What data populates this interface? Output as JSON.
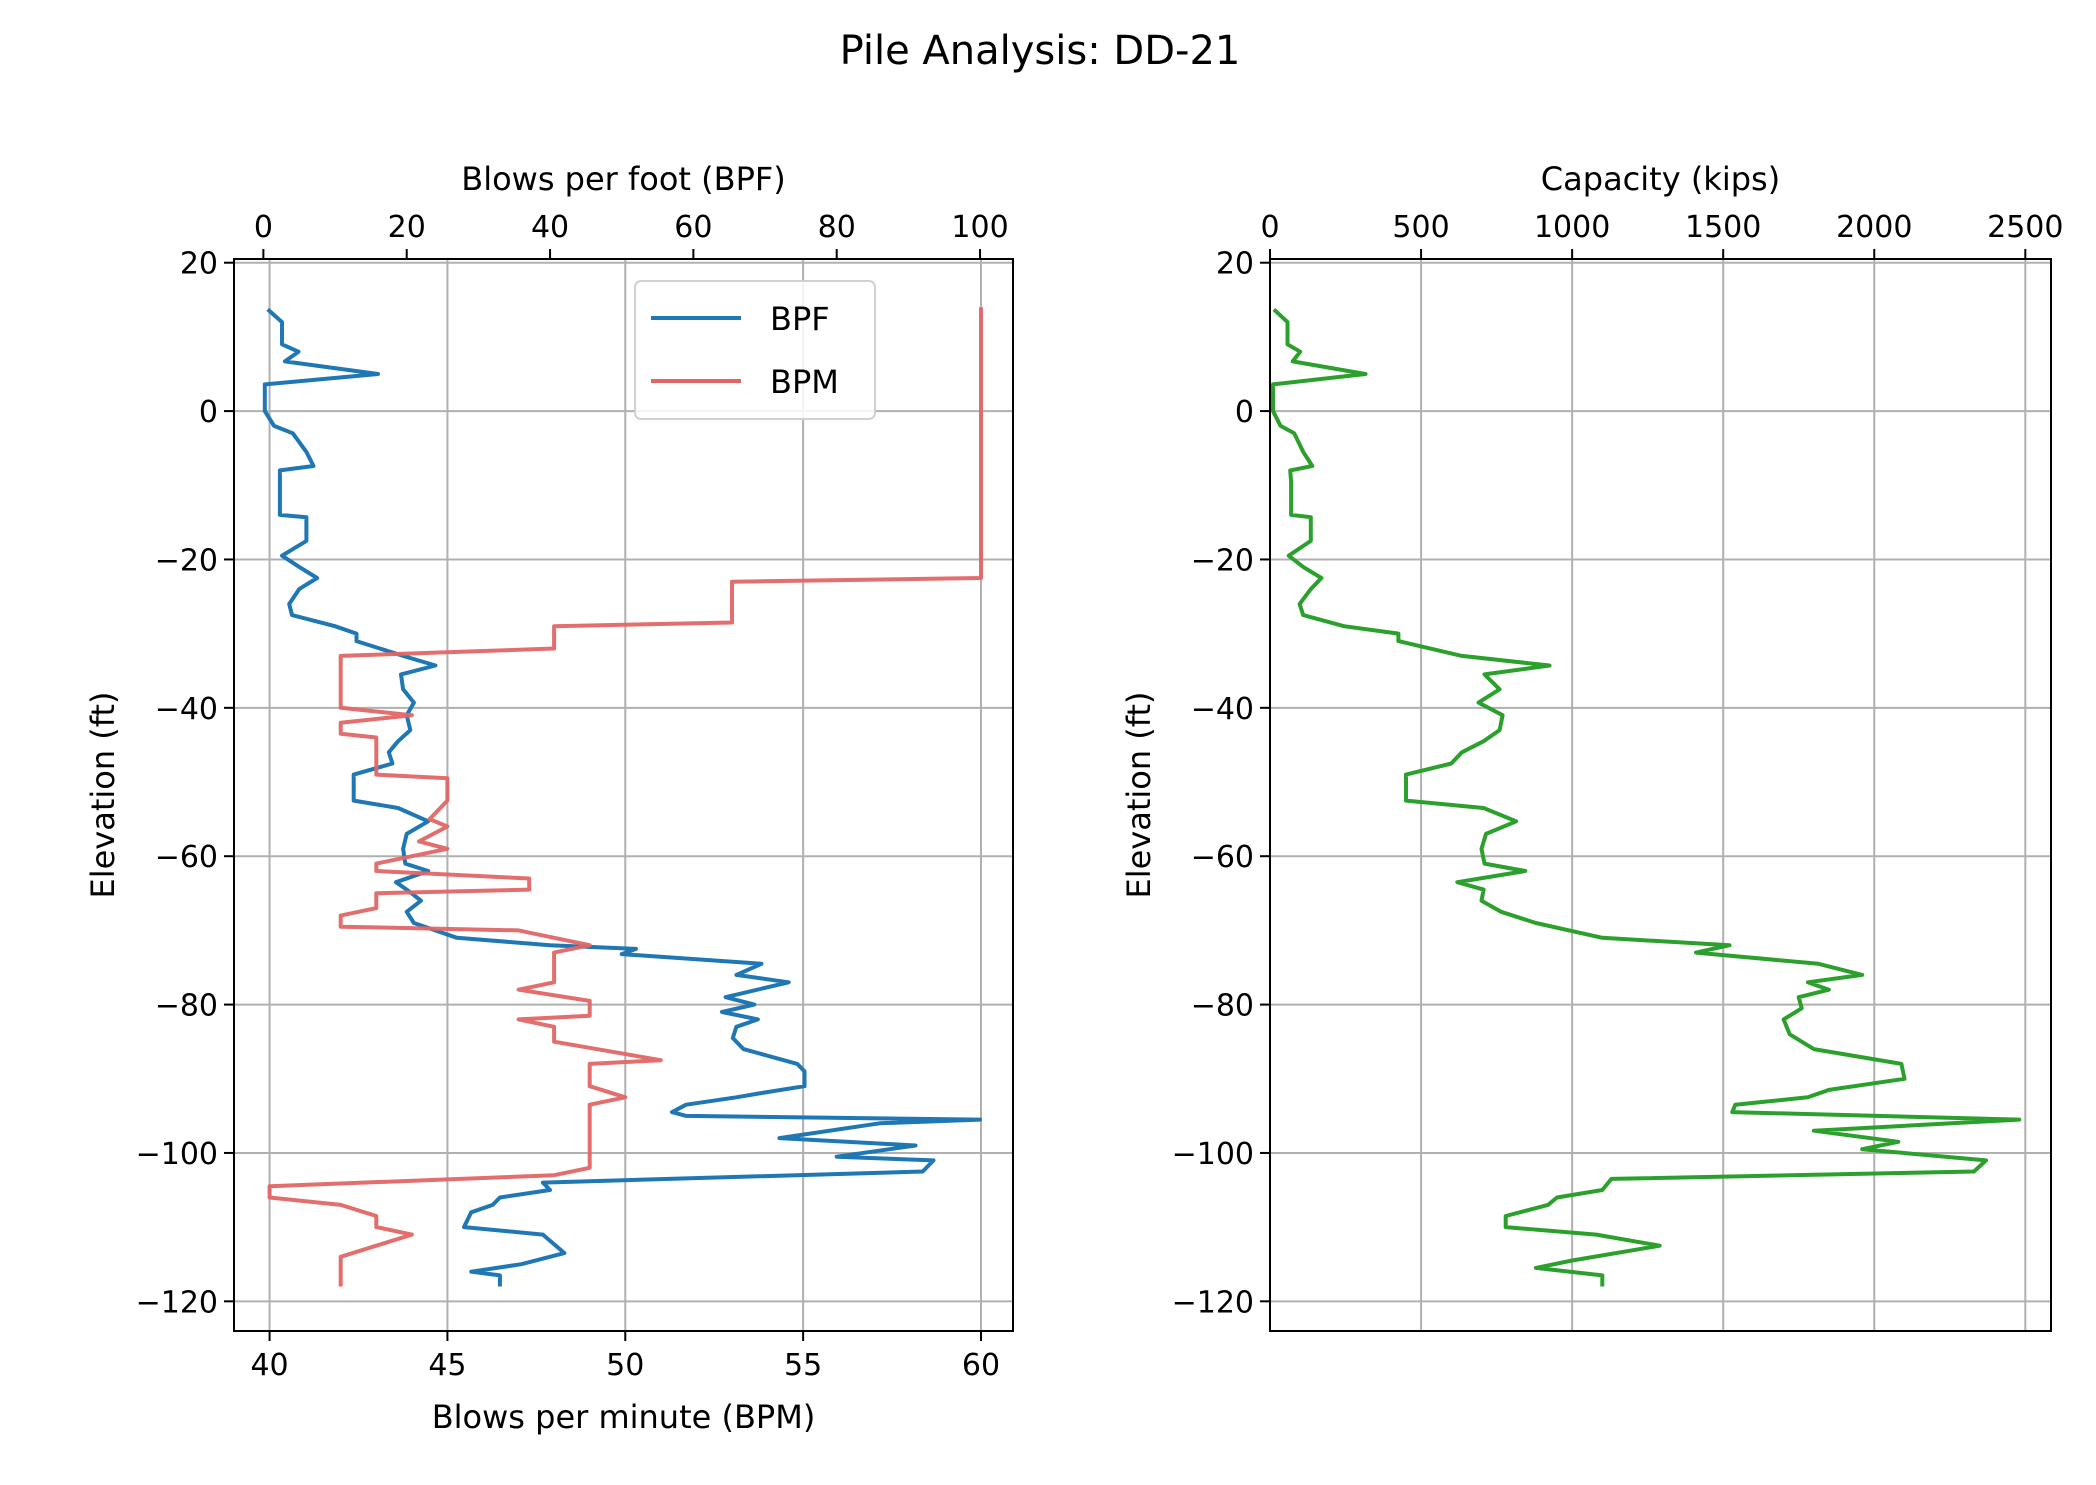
{
  "chart_data": [
    {
      "type": "line",
      "title": "Pile Analysis: DD-21",
      "ylabel": "Elevation (ft)",
      "ylim": [
        -124,
        20.5
      ],
      "yticks": [
        20,
        0,
        -20,
        -40,
        -60,
        -80,
        -100,
        -120
      ],
      "grid": true,
      "legend": {
        "placement": "upper-center",
        "entries": [
          "BPF",
          "BPM"
        ]
      },
      "x_bottom": {
        "label": "Blows per minute (BPM)",
        "lim": [
          39,
          60.9
        ],
        "ticks": [
          40,
          45,
          50,
          55,
          60
        ]
      },
      "x_top": {
        "label": "Blows per foot (BPF)",
        "lim": [
          -4.1,
          104.6
        ],
        "ticks": [
          0,
          20,
          40,
          60,
          80,
          100
        ]
      },
      "series": [
        {
          "name": "BPF",
          "axis": "top",
          "color": "#1f77b4",
          "elevation": [
            13.7,
            12,
            9,
            8,
            6.7,
            5,
            3.6,
            0,
            -2,
            -3,
            -5.5,
            -7.4,
            -8,
            -9.5,
            -14,
            -14.3,
            -17.5,
            -19.5,
            -21,
            -22.5,
            -24,
            -26,
            -27.5,
            -29,
            -30,
            -31,
            -33,
            -34.3,
            -35.5,
            -37.5,
            -39.3,
            -41,
            -43,
            -44.5,
            -46,
            -47.5,
            -49,
            -52.5,
            -53.5,
            -55.3,
            -57,
            -59,
            -61,
            -62,
            -63.5,
            -64.5,
            -66,
            -67.5,
            -69,
            -71,
            -72,
            -72.5,
            -73.2,
            -74.5,
            -76,
            -77,
            -79,
            -80,
            -81,
            -82,
            -83,
            -84.5,
            -86,
            -88,
            -89,
            -91,
            -92,
            -92.5,
            -93.5,
            -94.5,
            -95,
            -95.5,
            -96,
            -98,
            -99,
            -100.5,
            -101,
            -102.5,
            -104,
            -105,
            -106,
            -107,
            -108,
            -110,
            -111,
            -113.5,
            -115,
            -116,
            -116.5,
            -118
          ],
          "values": [
            0.6,
            2.6,
            2.6,
            4.9,
            3,
            16,
            0.2,
            0.2,
            1.5,
            4.1,
            6,
            7,
            2.3,
            2.3,
            2.3,
            6,
            6,
            2.6,
            5,
            7.5,
            5,
            3.6,
            4,
            10,
            13,
            13,
            19.5,
            24,
            19.2,
            19.5,
            21,
            20,
            20.5,
            18.8,
            17.5,
            18,
            12.6,
            12.6,
            18.8,
            23,
            20,
            19.5,
            19.8,
            23,
            18.5,
            20,
            22,
            20,
            21,
            27,
            40,
            52,
            50,
            69.5,
            66,
            73.3,
            64.5,
            68.5,
            64,
            69,
            66,
            65.5,
            67,
            74.5,
            75.5,
            75.5,
            69,
            66,
            59,
            57,
            59,
            100,
            86,
            72,
            91,
            80,
            93.5,
            92,
            39,
            40,
            33,
            32,
            29,
            28,
            39,
            42,
            36,
            29,
            33,
            33
          ]
        },
        {
          "name": "BPM",
          "axis": "bottom",
          "color": "#e06666",
          "elevation": [
            14,
            -22.5,
            -23,
            -28.5,
            -29,
            -32,
            -33,
            -40,
            -41,
            -42,
            -43.5,
            -44,
            -49,
            -49.5,
            -52.5,
            -55,
            -56,
            -58,
            -59,
            -61,
            -62,
            -63,
            -64.5,
            -65,
            -67,
            -68,
            -69.5,
            -70,
            -72,
            -73,
            -77,
            -78,
            -79.5,
            -81.5,
            -82,
            -83,
            -85,
            -87.5,
            -88,
            -91,
            -92.5,
            -93.5,
            -102,
            -103,
            -104.5,
            -106,
            -107,
            -108.5,
            -110,
            -111,
            -112.5,
            -114,
            -115,
            -118
          ],
          "values": [
            60,
            60,
            53,
            53,
            48,
            48,
            42,
            42,
            44,
            42,
            42,
            43,
            43,
            45,
            45,
            44.5,
            45,
            44.2,
            45,
            43,
            43,
            47.3,
            47.3,
            43,
            43,
            42,
            42,
            47,
            49,
            48,
            48,
            47,
            49,
            49,
            47,
            48,
            48,
            51,
            49,
            49,
            50,
            49,
            49,
            48,
            40,
            40,
            42,
            43,
            43,
            44,
            43,
            42,
            42,
            42
          ]
        }
      ]
    },
    {
      "type": "line",
      "ylabel": "Elevation (ft)",
      "ylim": [
        -124,
        20.5
      ],
      "yticks": [
        20,
        0,
        -20,
        -40,
        -60,
        -80,
        -100,
        -120
      ],
      "grid": true,
      "x_top": {
        "label": "Capacity (kips)",
        "lim": [
          0,
          2585
        ],
        "ticks": [
          0,
          500,
          1000,
          1500,
          2000,
          2500
        ]
      },
      "series": [
        {
          "name": "Capacity",
          "color": "#2ca02c",
          "elevation": [
            13.7,
            12,
            9,
            8,
            6.7,
            5,
            3.6,
            0,
            -2,
            -3,
            -5.5,
            -7.4,
            -8,
            -9.5,
            -14,
            -14.3,
            -17.5,
            -19.5,
            -21,
            -22.5,
            -24,
            -26,
            -27.5,
            -29,
            -30,
            -31,
            -33,
            -34.3,
            -35.5,
            -37.5,
            -39.3,
            -41,
            -43,
            -44.5,
            -46,
            -47.5,
            -49,
            -52.5,
            -53.5,
            -55.3,
            -57,
            -59,
            -61,
            -62,
            -63.5,
            -64.5,
            -66,
            -67.5,
            -69,
            -71,
            -72,
            -73,
            -74.5,
            -76,
            -77,
            -78,
            -79,
            -80.5,
            -82,
            -84,
            -86,
            -88,
            -90,
            -91.5,
            -92.5,
            -93.5,
            -94.5,
            -95.5,
            -97,
            -98.5,
            -99.5,
            -101,
            -102.5,
            -103.5,
            -105,
            -106,
            -107,
            -108.5,
            -110,
            -111,
            -112.5,
            -114.5,
            -115.5,
            -116.5,
            -118
          ],
          "values": [
            13,
            58,
            58,
            100,
            75,
            316,
            10,
            10,
            35,
            80,
            110,
            140,
            67,
            70,
            70,
            135,
            135,
            62,
            110,
            170,
            135,
            98,
            110,
            245,
            425,
            425,
            635,
            925,
            710,
            760,
            690,
            770,
            760,
            707,
            635,
            600,
            450,
            450,
            707,
            815,
            715,
            700,
            710,
            845,
            620,
            707,
            700,
            765,
            880,
            1100,
            1521,
            1410,
            1815,
            1960,
            1780,
            1850,
            1750,
            1760,
            1700,
            1720,
            1800,
            2090,
            2100,
            1850,
            1780,
            1540,
            1530,
            2480,
            1800,
            2080,
            1960,
            2370,
            2330,
            1130,
            1100,
            950,
            920,
            780,
            780,
            1080,
            1290,
            1000,
            880,
            1100,
            1100
          ]
        }
      ]
    }
  ]
}
